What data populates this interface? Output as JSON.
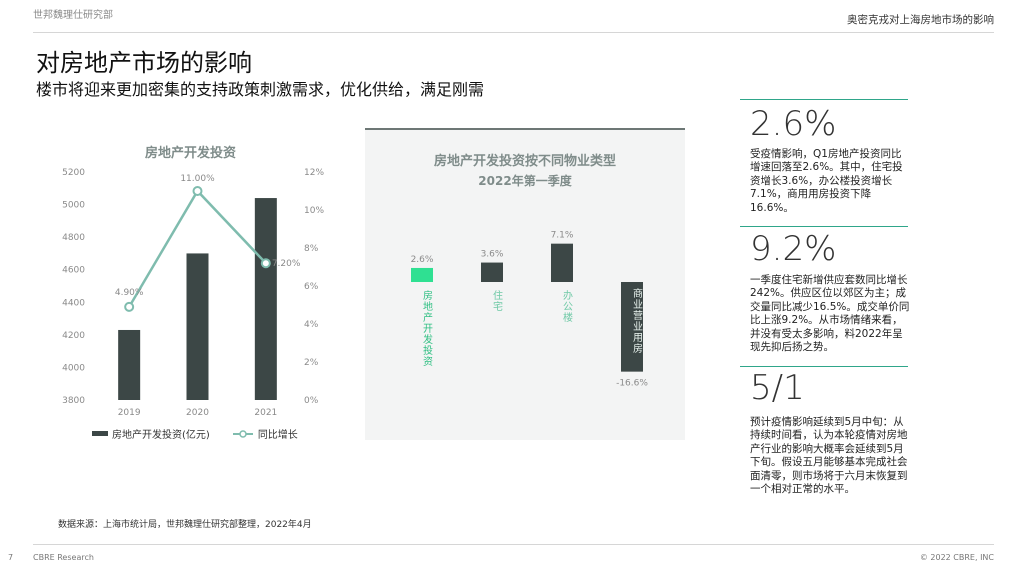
{
  "header": {
    "org": "世邦魏理仕研究部",
    "topic": "奥密克戎对上海房地市场的影响"
  },
  "title": "对房地产市场的影响",
  "subtitle": "楼市将迎来更加密集的支持政策刺激需求，优化供给，满足刚需",
  "colors": {
    "bar": "#3c4746",
    "line": "#7fbcae",
    "accent": "#2fe092",
    "rule": "#2fa68a"
  },
  "chart_data": [
    {
      "type": "bar",
      "title": "房地产开发投资",
      "categories": [
        "2019",
        "2020",
        "2021"
      ],
      "series": [
        {
          "name": "房地产开发投资(亿元)",
          "type": "bar",
          "axis": "left",
          "values": [
            4230,
            4700,
            5040
          ]
        },
        {
          "name": "同比增长",
          "type": "line",
          "axis": "right",
          "values": [
            4.9,
            11.0,
            7.2
          ],
          "labels": [
            "4.90%",
            "11.00%",
            "7.20%"
          ]
        }
      ],
      "y_left": {
        "min": 3800,
        "max": 5200,
        "ticks": [
          "3800",
          "4000",
          "4200",
          "4400",
          "4600",
          "4800",
          "5000",
          "5200"
        ]
      },
      "y_right": {
        "min": 0,
        "max": 12,
        "ticks": [
          "0%",
          "2%",
          "4%",
          "6%",
          "8%",
          "10%",
          "12%"
        ]
      },
      "legend": "bottom"
    },
    {
      "type": "bar",
      "title": "房地产开发投资按不同物业类型",
      "subtitle": "2022年第一季度",
      "categories": [
        "房地产开发投资",
        "住宅",
        "办公楼",
        "商业营业用房"
      ],
      "values": [
        2.6,
        3.6,
        7.1,
        -16.6
      ],
      "labels": [
        "2.6%",
        "3.6%",
        "7.1%",
        "-16.6%"
      ],
      "highlight_index": 0
    }
  ],
  "stats": [
    {
      "value": "2.6%",
      "text": "受疫情影响，Q1房地产投资同比增速回落至2.6%。其中，住宅投资增长3.6%，办公楼投资增长7.1%，商用用房投资下降16.6%。"
    },
    {
      "value": "9.2%",
      "text": "一季度住宅新增供应套数同比增长242%。供应区位以郊区为主；成交量同比减少16.5%。成交单价同比上涨9.2%。从市场情绪来看，并没有受太多影响，料2022年呈现先抑后扬之势。"
    },
    {
      "value": "5/1",
      "text": "预计疫情影响延续到5月中旬：从持续时间看，认为本轮疫情对房地产行业的影响大概率会延续到5月下旬。假设五月能够基本完成社会面清零，则市场将于六月末恢复到一个相对正常的水平。"
    }
  ],
  "source": "数据来源：上海市统计局，世邦魏理仕研究部整理，2022年4月",
  "footer": {
    "page": "7",
    "left": "CBRE Research",
    "right": "© 2022 CBRE, INC"
  }
}
